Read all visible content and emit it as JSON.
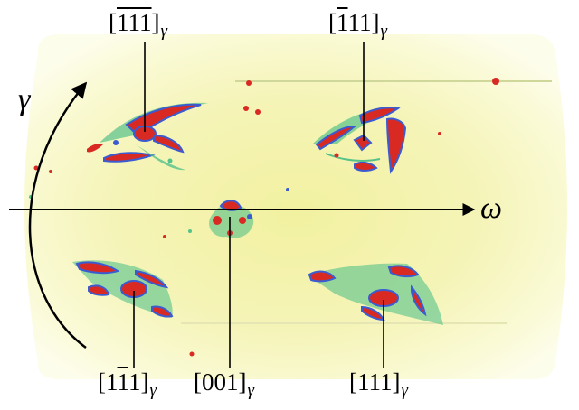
{
  "axes": {
    "horizontal": "ω",
    "vertical": "γ"
  },
  "subscript": "γ",
  "labels": {
    "top_left": {
      "d1": "1",
      "d2": "1",
      "d3": "1",
      "overline": [
        true,
        true,
        true
      ]
    },
    "top_right": {
      "d1": "1",
      "d2": "1",
      "d3": "1",
      "overline": [
        true,
        false,
        false
      ]
    },
    "bottom_left": {
      "d1": "1",
      "d2": "1",
      "d3": "1",
      "overline": [
        false,
        true,
        false
      ]
    },
    "bottom_mid": {
      "d1": "0",
      "d2": "0",
      "d3": "1",
      "overline": [
        false,
        false,
        false
      ]
    },
    "bottom_right": {
      "d1": "1",
      "d2": "1",
      "d3": "1",
      "overline": [
        false,
        false,
        false
      ]
    }
  },
  "colors": {
    "background_halo": "#fbfbd2",
    "background_core": "#f3f2a2",
    "spot_red": "#d82a23",
    "spot_blue": "#3b5cd0",
    "spot_green": "#55c28a",
    "axis": "#000000"
  }
}
